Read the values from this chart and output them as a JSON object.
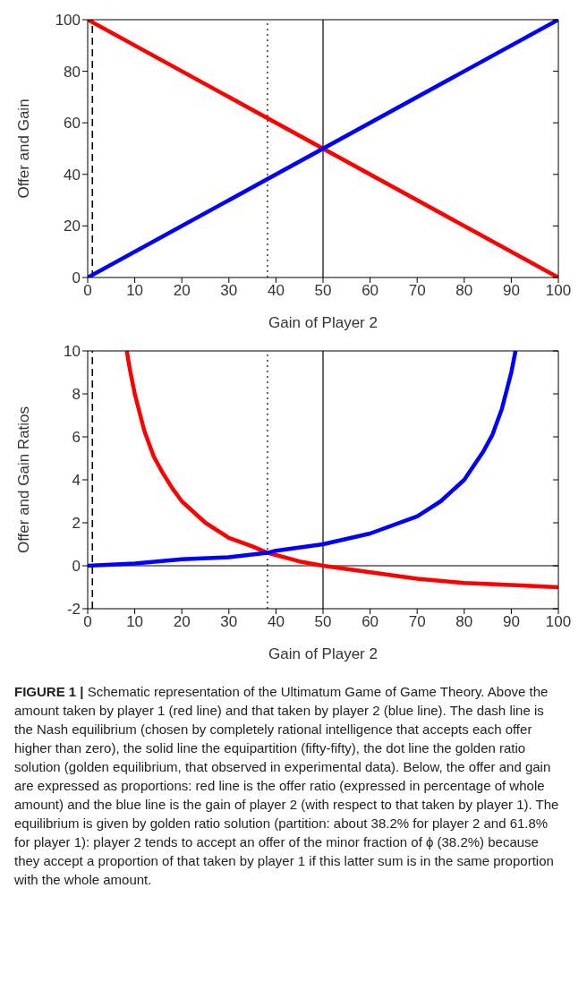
{
  "chart_data": [
    {
      "type": "line",
      "xlabel": "Gain of Player 2",
      "ylabel": "Offer and Gain",
      "xlim": [
        0,
        100
      ],
      "ylim": [
        0,
        100
      ],
      "xticks": [
        0,
        10,
        20,
        30,
        40,
        50,
        60,
        70,
        80,
        90,
        100
      ],
      "yticks": [
        0,
        20,
        40,
        60,
        80,
        100
      ],
      "grid": false,
      "legend": false,
      "marker": "none",
      "line_style": "solid",
      "series": [
        {
          "color": "#ff0000",
          "x": [
            0,
            100
          ],
          "values": [
            100,
            0
          ]
        },
        {
          "color": "#0000ff",
          "x": [
            0,
            100
          ],
          "values": [
            0,
            100
          ]
        }
      ],
      "ref_lines": [
        {
          "axis": "x",
          "value": 1,
          "line_style": "dashed",
          "color": "#000000"
        },
        {
          "axis": "x",
          "value": 38.2,
          "line_style": "dotted",
          "color": "#000000"
        },
        {
          "axis": "x",
          "value": 50,
          "line_style": "solid",
          "color": "#000000"
        }
      ]
    },
    {
      "type": "line",
      "xlabel": "Gain of Player 2",
      "ylabel": "Offer and Gain Ratios",
      "xlim": [
        0,
        100
      ],
      "ylim": [
        -2,
        10
      ],
      "xticks": [
        0,
        10,
        20,
        30,
        40,
        50,
        60,
        70,
        80,
        90,
        100
      ],
      "yticks": [
        -2,
        0,
        2,
        4,
        6,
        8,
        10
      ],
      "grid": false,
      "legend": false,
      "marker": "none",
      "line_style": "solid",
      "series": [
        {
          "color": "#ff0000",
          "x": [
            8.3,
            9,
            10,
            12,
            14,
            16,
            18,
            20,
            25,
            30,
            35,
            38.2,
            40,
            45,
            50,
            60,
            70,
            80,
            90,
            100
          ],
          "values": [
            10,
            9.1,
            8,
            6.3,
            5.1,
            4.3,
            3.6,
            3,
            2,
            1.3,
            0.9,
            0.6,
            0.5,
            0.2,
            0,
            -0.3,
            -0.6,
            -0.8,
            -0.9,
            -1
          ]
        },
        {
          "color": "#0000ff",
          "x": [
            0,
            10,
            20,
            30,
            38.2,
            40,
            50,
            60,
            70,
            75,
            80,
            84,
            86,
            88,
            90,
            90.9
          ],
          "values": [
            0,
            0.1,
            0.3,
            0.4,
            0.6,
            0.7,
            1,
            1.5,
            2.3,
            3,
            4,
            5.3,
            6.1,
            7.3,
            9,
            10
          ]
        }
      ],
      "ref_lines": [
        {
          "axis": "x",
          "value": 1,
          "line_style": "dashed",
          "color": "#000000"
        },
        {
          "axis": "x",
          "value": 38.2,
          "line_style": "dotted",
          "color": "#000000"
        },
        {
          "axis": "x",
          "value": 50,
          "line_style": "solid",
          "color": "#000000"
        },
        {
          "axis": "y",
          "value": 0,
          "line_style": "solid",
          "color": "#000000"
        }
      ],
      "annotations": [
        "FIGURE 1 |",
        "Schematic representation of the Ultimatum Game of Game Theory. Above the amount taken by player 1 (red line) and that taken by player 2 (blue line). The dash line is the Nash equilibrium (chosen by completely rational intelligence that accepts each offer higher than zero), the solid line the equipartition (fifty-fifty), the dot line the golden ratio solution (golden equilibrium, that observed in experimental data). Below, the offer and gain are expressed as proportions: red line is the offer ratio (expressed in percentage of whole amount) and the blue line is the gain of player 2 (with respect to that taken by player 1). The equilibrium is given by golden ratio solution (partition: about 38.2% for player 2 and 61.8% for player 1): player 2 tends to accept an offer of the minor fraction of ϕ (38.2%) because they accept a proportion of that taken by player 1 if this latter sum is in the same proportion with the whole amount."
      ]
    }
  ]
}
